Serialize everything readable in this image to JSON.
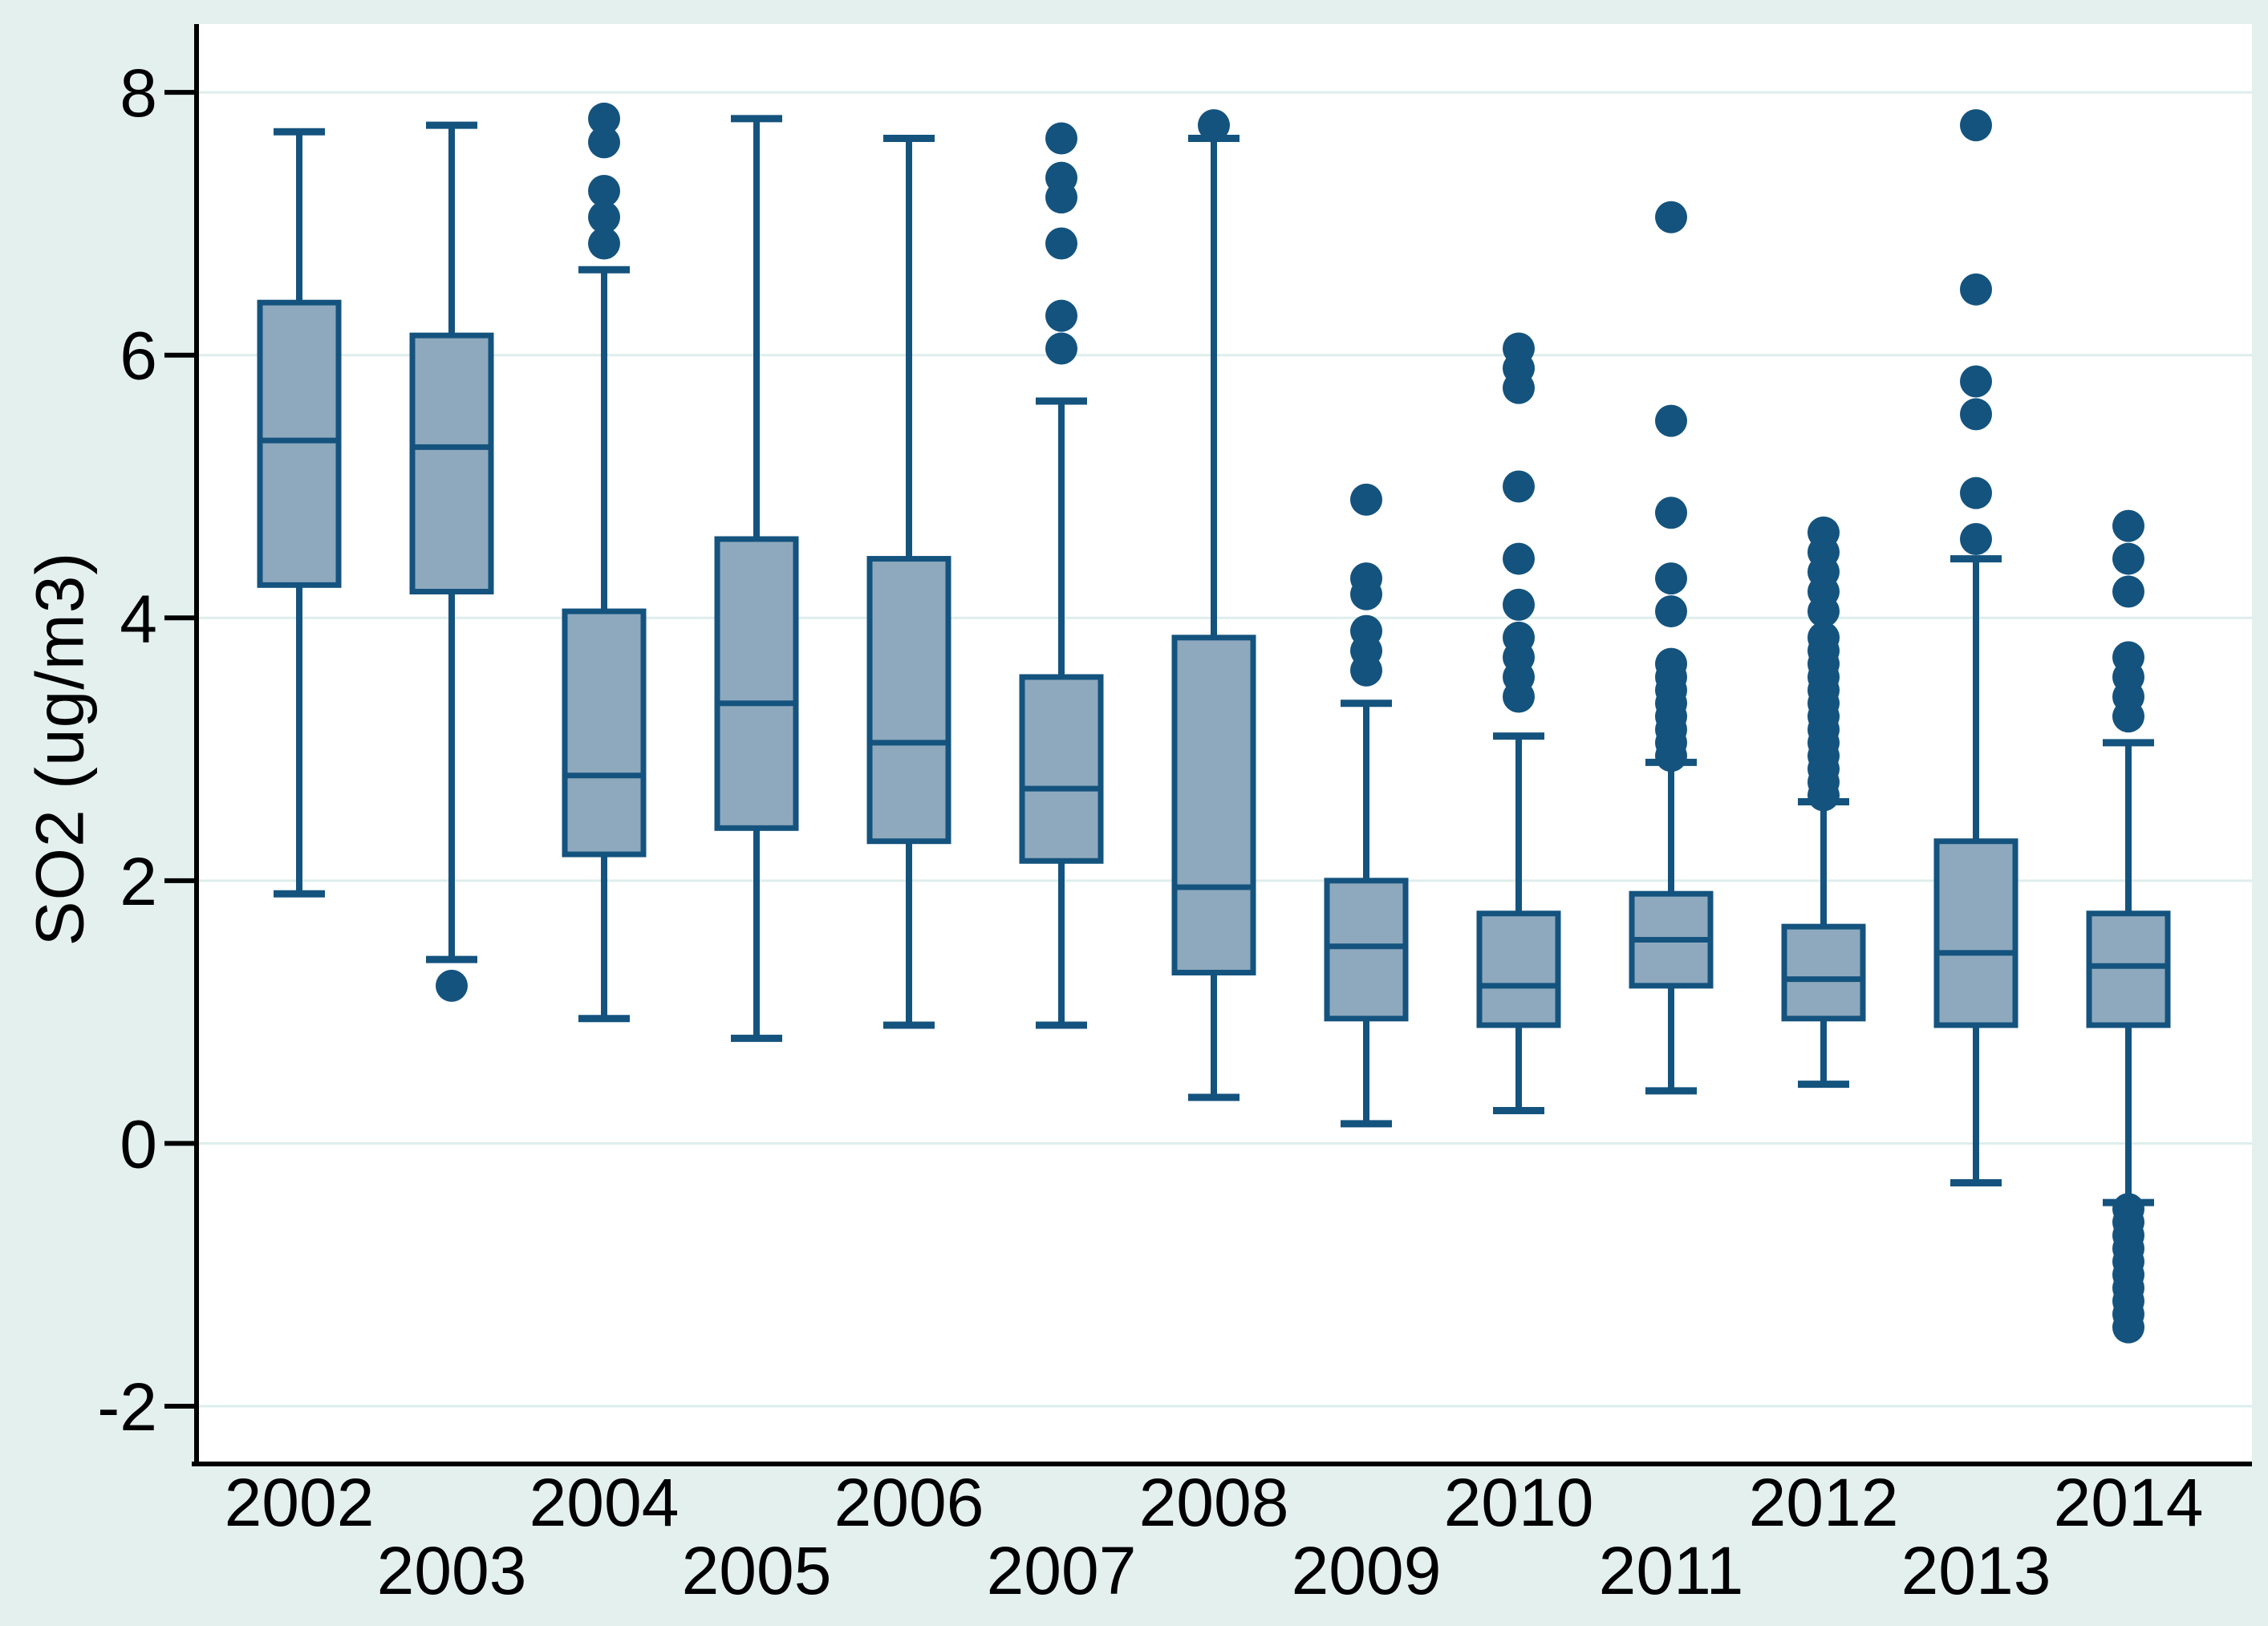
{
  "figure": {
    "background_color": "#e3f0ee",
    "plot_background": "#ffffff",
    "grid_color": "#ddeeec",
    "box_fill": "#8ea9bd",
    "box_stroke": "#14537e",
    "axis_color": "#000000",
    "text_color": "#000000"
  },
  "chart_data": {
    "type": "box",
    "title": "",
    "xlabel": "",
    "ylabel": "SO2 (ug/m3)",
    "grid": true,
    "legend": "none",
    "ylim": [
      -2.44,
      8.52
    ],
    "y_ticks": [
      8,
      6,
      4,
      2,
      0,
      -2
    ],
    "y_tick_labels": [
      "8",
      "6",
      "4",
      "2",
      "0",
      "-2"
    ],
    "categories": [
      "2002",
      "2003",
      "2004",
      "2005",
      "2006",
      "2007",
      "2008",
      "2009",
      "2010",
      "2011",
      "2012",
      "2013",
      "2014"
    ],
    "series": [
      {
        "year": "2002",
        "whisker_low": 1.9,
        "q1": 4.25,
        "median": 5.35,
        "q3": 6.4,
        "whisker_high": 7.7,
        "outliers": []
      },
      {
        "year": "2003",
        "whisker_low": 1.4,
        "q1": 4.2,
        "median": 5.3,
        "q3": 6.15,
        "whisker_high": 7.75,
        "outliers": [
          1.2
        ]
      },
      {
        "year": "2004",
        "whisker_low": 0.95,
        "q1": 2.2,
        "median": 2.8,
        "q3": 4.05,
        "whisker_high": 6.65,
        "outliers": [
          7.8,
          7.62,
          7.25,
          7.05,
          6.85
        ]
      },
      {
        "year": "2005",
        "whisker_low": 0.8,
        "q1": 2.4,
        "median": 3.35,
        "q3": 4.6,
        "whisker_high": 7.8,
        "outliers": []
      },
      {
        "year": "2006",
        "whisker_low": 0.9,
        "q1": 2.3,
        "median": 3.05,
        "q3": 4.45,
        "whisker_high": 7.65,
        "outliers": []
      },
      {
        "year": "2007",
        "whisker_low": 0.9,
        "q1": 2.15,
        "median": 2.7,
        "q3": 3.55,
        "whisker_high": 5.65,
        "outliers": [
          7.65,
          7.35,
          7.2,
          6.85,
          6.3,
          6.05
        ]
      },
      {
        "year": "2008",
        "whisker_low": 0.35,
        "q1": 1.3,
        "median": 1.95,
        "q3": 3.85,
        "whisker_high": 7.65,
        "outliers": [
          7.75
        ]
      },
      {
        "year": "2009",
        "whisker_low": 0.15,
        "q1": 0.95,
        "median": 1.5,
        "q3": 2.0,
        "whisker_high": 3.35,
        "outliers": [
          4.9,
          4.3,
          4.18,
          3.9,
          3.75,
          3.6
        ]
      },
      {
        "year": "2010",
        "whisker_low": 0.25,
        "q1": 0.9,
        "median": 1.2,
        "q3": 1.75,
        "whisker_high": 3.1,
        "outliers": [
          6.05,
          5.9,
          5.75,
          5.0,
          4.45,
          4.1,
          3.85,
          3.7,
          3.55,
          3.4
        ]
      },
      {
        "year": "2011",
        "whisker_low": 0.4,
        "q1": 1.2,
        "median": 1.55,
        "q3": 1.9,
        "whisker_high": 2.9,
        "outliers": [
          7.05,
          5.5,
          4.8,
          4.3,
          4.05,
          3.65,
          3.55,
          3.45,
          3.35,
          3.25,
          3.15,
          3.05,
          2.95
        ]
      },
      {
        "year": "2012",
        "whisker_low": 0.45,
        "q1": 0.95,
        "median": 1.25,
        "q3": 1.65,
        "whisker_high": 2.6,
        "outliers": [
          4.65,
          4.5,
          4.35,
          4.2,
          4.05,
          3.85,
          3.75,
          3.65,
          3.55,
          3.45,
          3.35,
          3.25,
          3.15,
          3.05,
          2.95,
          2.85,
          2.75,
          2.65
        ]
      },
      {
        "year": "2013",
        "whisker_low": -0.3,
        "q1": 0.9,
        "median": 1.45,
        "q3": 2.3,
        "whisker_high": 4.45,
        "outliers": [
          7.75,
          6.5,
          5.8,
          5.55,
          4.95,
          4.6
        ]
      },
      {
        "year": "2014",
        "whisker_low": -0.45,
        "q1": 0.9,
        "median": 1.35,
        "q3": 1.75,
        "whisker_high": 3.05,
        "outliers": [
          4.7,
          4.45,
          4.2,
          3.7,
          3.55,
          3.4,
          3.25,
          -0.5,
          -0.6,
          -0.7,
          -0.8,
          -0.9,
          -1.0,
          -1.1,
          -1.2,
          -1.3,
          -1.4
        ]
      }
    ]
  }
}
